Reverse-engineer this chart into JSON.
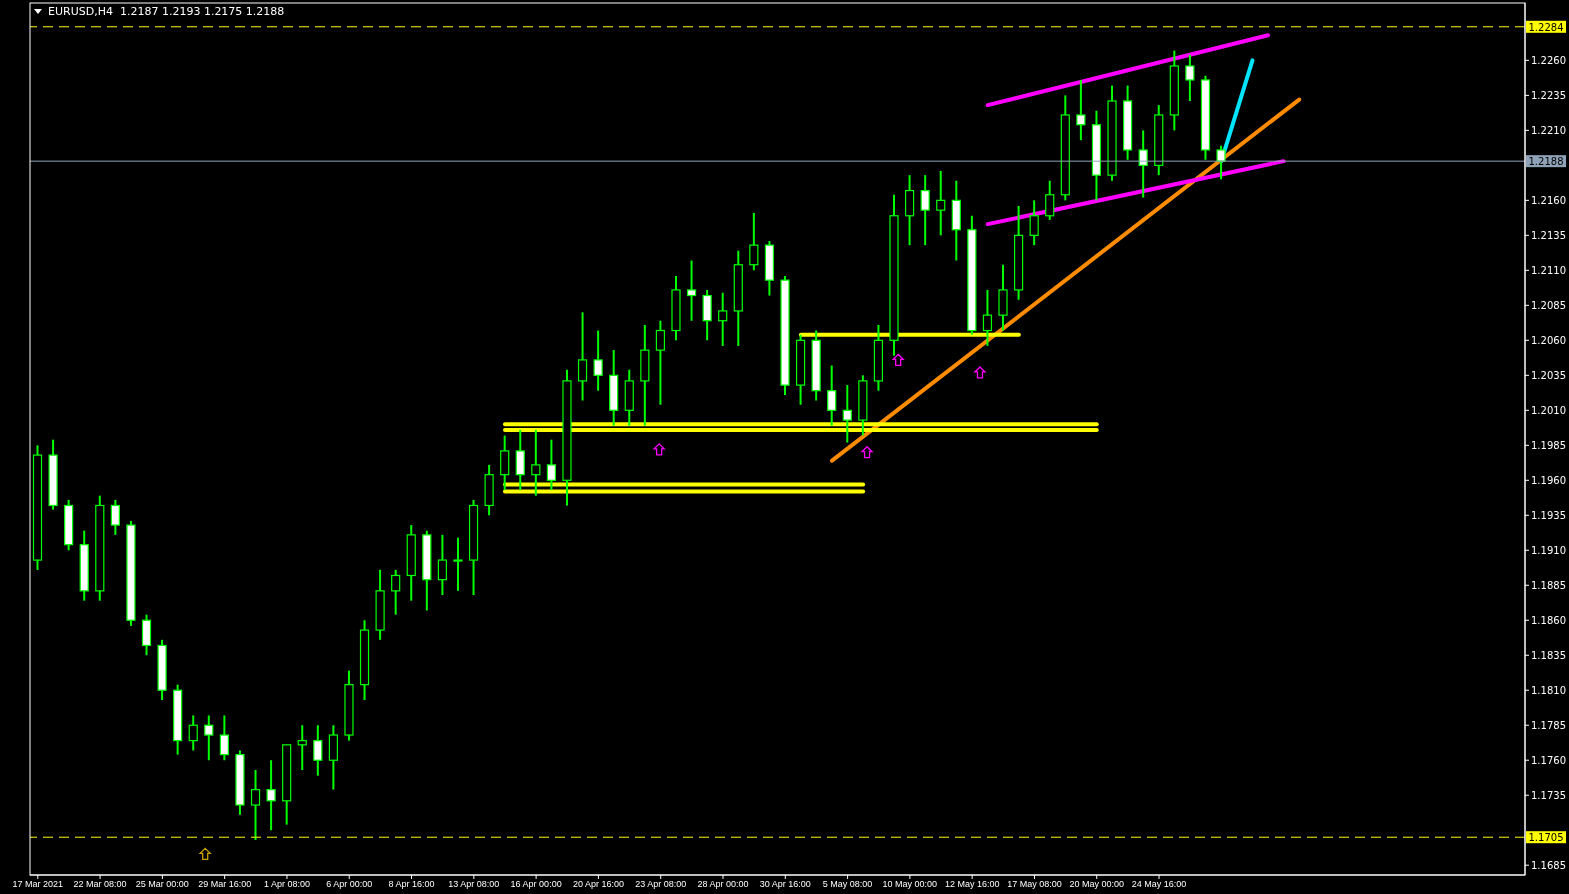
{
  "chart_data": {
    "type": "candlestick",
    "title": "EURUSD,H4  1.2187 1.2193 1.2175 1.2188",
    "color": "#00ff00",
    "categories": [
      "17 Mar 2021",
      null,
      null,
      null,
      "22 Mar 08:00",
      null,
      null,
      null,
      "25 Mar 00:00",
      null,
      null,
      null,
      "29 Mar 16:00",
      null,
      null,
      null,
      "1 Apr 08:00",
      null,
      null,
      null,
      "6 Apr 00:00",
      null,
      null,
      null,
      "8 Apr 16:00",
      null,
      null,
      null,
      "13 Apr 08:00",
      null,
      null,
      null,
      "16 Apr 00:00",
      null,
      null,
      null,
      "20 Apr 16:00",
      null,
      null,
      null,
      "23 Apr 08:00",
      null,
      null,
      null,
      "28 Apr 00:00",
      null,
      null,
      null,
      "30 Apr 16:00",
      null,
      null,
      null,
      "5 May 08:00",
      null,
      null,
      null,
      "10 May 00:00",
      null,
      null,
      null,
      "12 May 16:00",
      null,
      null,
      null,
      "17 May 08:00",
      null,
      null,
      null,
      "20 May 00:00",
      null,
      null,
      null,
      "24 May 16:00",
      null,
      null,
      null,
      null,
      null,
      null,
      null,
      null,
      null,
      null,
      null,
      null,
      null,
      null,
      null,
      null,
      null,
      null,
      null,
      null,
      null,
      null,
      null
    ],
    "ohlc": [
      [
        1.1903,
        1.1985,
        1.1896,
        1.1978
      ],
      [
        1.1978,
        1.1989,
        1.1939,
        1.1942
      ],
      [
        1.1942,
        1.1946,
        1.191,
        1.1914
      ],
      [
        1.1914,
        1.1924,
        1.1874,
        1.1881
      ],
      [
        1.1881,
        1.1949,
        1.1874,
        1.1942
      ],
      [
        1.1942,
        1.1946,
        1.1921,
        1.1928
      ],
      [
        1.1928,
        1.1931,
        1.1856,
        1.186
      ],
      [
        1.186,
        1.1864,
        1.1835,
        1.1842
      ],
      [
        1.1842,
        1.1846,
        1.1803,
        1.181
      ],
      [
        1.181,
        1.1814,
        1.1764,
        1.1774
      ],
      [
        1.1774,
        1.1792,
        1.1767,
        1.1785
      ],
      [
        1.1785,
        1.1792,
        1.176,
        1.1778
      ],
      [
        1.1778,
        1.1792,
        1.176,
        1.1764
      ],
      [
        1.1764,
        1.1767,
        1.1721,
        1.1728
      ],
      [
        1.1728,
        1.1753,
        1.1703,
        1.1739
      ],
      [
        1.1739,
        1.176,
        1.171,
        1.1731
      ],
      [
        1.1731,
        1.1771,
        1.1714,
        1.1771
      ],
      [
        1.1771,
        1.1785,
        1.1753,
        1.1774
      ],
      [
        1.1774,
        1.1785,
        1.1749,
        1.176
      ],
      [
        1.176,
        1.1785,
        1.1739,
        1.1778
      ],
      [
        1.1778,
        1.1824,
        1.1774,
        1.1814
      ],
      [
        1.1814,
        1.186,
        1.1803,
        1.1853
      ],
      [
        1.1853,
        1.1896,
        1.1846,
        1.1881
      ],
      [
        1.1881,
        1.1896,
        1.1864,
        1.1892
      ],
      [
        1.1892,
        1.1928,
        1.1874,
        1.1921
      ],
      [
        1.1921,
        1.1924,
        1.1867,
        1.1889
      ],
      [
        1.1889,
        1.1921,
        1.1878,
        1.1903
      ],
      [
        1.1903,
        1.1919,
        1.1881,
        1.1903
      ],
      [
        1.1903,
        1.1946,
        1.1878,
        1.1942
      ],
      [
        1.1942,
        1.1971,
        1.1935,
        1.1964
      ],
      [
        1.1964,
        1.1992,
        1.1953,
        1.1981
      ],
      [
        1.1981,
        1.1996,
        1.1953,
        1.1964
      ],
      [
        1.1964,
        1.1996,
        1.1949,
        1.1971
      ],
      [
        1.1971,
        1.1989,
        1.1953,
        1.196
      ],
      [
        1.196,
        1.2039,
        1.1942,
        1.2031
      ],
      [
        1.2031,
        1.208,
        1.2017,
        1.2046
      ],
      [
        1.2046,
        1.2067,
        1.2024,
        1.2035
      ],
      [
        1.2035,
        1.2053,
        1.1999,
        1.201
      ],
      [
        1.201,
        1.2039,
        1.1999,
        1.2031
      ],
      [
        1.2031,
        1.2071,
        1.1999,
        1.2053
      ],
      [
        1.2053,
        1.2074,
        1.2014,
        1.2067
      ],
      [
        1.2067,
        1.2106,
        1.206,
        1.2096
      ],
      [
        1.2096,
        1.2117,
        1.2074,
        1.2092
      ],
      [
        1.2092,
        1.2096,
        1.206,
        1.2074
      ],
      [
        1.2074,
        1.2094,
        1.2056,
        1.2081
      ],
      [
        1.2081,
        1.2124,
        1.2056,
        1.2114
      ],
      [
        1.2114,
        1.2151,
        1.211,
        1.2128
      ],
      [
        1.2128,
        1.2131,
        1.2092,
        1.2103
      ],
      [
        1.2103,
        1.2106,
        1.2021,
        1.2028
      ],
      [
        1.2028,
        1.2064,
        1.2014,
        1.206
      ],
      [
        1.206,
        1.2067,
        1.2017,
        1.2024
      ],
      [
        1.2024,
        1.2042,
        1.1999,
        1.201
      ],
      [
        1.201,
        1.2028,
        1.1987,
        1.2003
      ],
      [
        1.2003,
        1.2035,
        1.1992,
        1.2031
      ],
      [
        1.2031,
        1.2071,
        1.2024,
        1.206
      ],
      [
        1.206,
        1.2164,
        1.2049,
        1.2149
      ],
      [
        1.2149,
        1.2178,
        1.2128,
        1.2167
      ],
      [
        1.2167,
        1.2178,
        1.2128,
        1.2153
      ],
      [
        1.2153,
        1.2181,
        1.2135,
        1.216
      ],
      [
        1.216,
        1.2174,
        1.2117,
        1.2139
      ],
      [
        1.2139,
        1.2149,
        1.2064,
        1.2067
      ],
      [
        1.2067,
        1.2096,
        1.2056,
        1.2078
      ],
      [
        1.2078,
        1.2114,
        1.2067,
        1.2096
      ],
      [
        1.2096,
        1.2156,
        1.2089,
        1.2135
      ],
      [
        1.2135,
        1.216,
        1.2128,
        1.2149
      ],
      [
        1.2149,
        1.2174,
        1.2146,
        1.2164
      ],
      [
        1.2164,
        1.2235,
        1.216,
        1.2221
      ],
      [
        1.2221,
        1.2246,
        1.2203,
        1.2214
      ],
      [
        1.2214,
        1.2224,
        1.216,
        1.2178
      ],
      [
        1.2178,
        1.2242,
        1.2174,
        1.2231
      ],
      [
        1.2231,
        1.2242,
        1.2189,
        1.2196
      ],
      [
        1.2196,
        1.221,
        1.2162,
        1.2185
      ],
      [
        1.2185,
        1.2228,
        1.2178,
        1.2221
      ],
      [
        1.2221,
        1.2267,
        1.221,
        1.2256
      ],
      [
        1.2256,
        1.2264,
        1.2231,
        1.2246
      ],
      [
        1.2246,
        1.2249,
        1.2189,
        1.2196
      ],
      [
        1.2196,
        1.2199,
        1.2175,
        1.2188
      ],
      null,
      null,
      null,
      null,
      null,
      null,
      null,
      null,
      null,
      null,
      null,
      null,
      null,
      null,
      null,
      null,
      null,
      null,
      null
    ],
    "series": [
      {
        "type": "line",
        "color": "#ff8c00",
        "values": [
          null,
          null,
          null,
          null,
          null,
          null,
          null,
          null,
          null,
          null,
          null,
          null,
          null,
          null,
          null,
          null,
          null,
          null,
          null,
          null,
          null,
          null,
          null,
          null,
          null,
          null,
          null,
          null,
          null,
          null,
          null,
          null,
          null,
          null,
          null,
          null,
          null,
          null,
          null,
          null,
          null,
          null,
          null,
          null,
          null,
          null,
          null,
          null,
          null,
          null,
          null,
          1.1974,
          null,
          null,
          null,
          null,
          null,
          null,
          null,
          null,
          null,
          null,
          null,
          null,
          null,
          null,
          null,
          null,
          null,
          null,
          null,
          null,
          null,
          null,
          null,
          null,
          null,
          null,
          null,
          null,
          null,
          1.2232,
          null,
          null,
          null,
          null,
          null,
          null,
          null,
          null,
          null,
          null,
          null,
          null,
          null,
          null
        ]
      },
      {
        "type": "line",
        "color": "#ff00ff",
        "values": [
          null,
          null,
          null,
          null,
          null,
          null,
          null,
          null,
          null,
          null,
          null,
          null,
          null,
          null,
          null,
          null,
          null,
          null,
          null,
          null,
          null,
          null,
          null,
          null,
          null,
          null,
          null,
          null,
          null,
          null,
          null,
          null,
          null,
          null,
          null,
          null,
          null,
          null,
          null,
          null,
          null,
          null,
          null,
          null,
          null,
          null,
          null,
          null,
          null,
          null,
          null,
          null,
          null,
          null,
          null,
          null,
          null,
          null,
          null,
          null,
          null,
          1.2228,
          null,
          null,
          null,
          null,
          null,
          null,
          null,
          null,
          null,
          null,
          null,
          null,
          null,
          null,
          null,
          null,
          null,
          1.2278,
          null,
          null,
          null,
          null,
          null,
          null,
          null,
          null,
          null,
          null,
          null,
          null,
          null,
          null,
          null,
          null
        ]
      },
      {
        "type": "line",
        "color": "#ff00ff",
        "values": [
          null,
          null,
          null,
          null,
          null,
          null,
          null,
          null,
          null,
          null,
          null,
          null,
          null,
          null,
          null,
          null,
          null,
          null,
          null,
          null,
          null,
          null,
          null,
          null,
          null,
          null,
          null,
          null,
          null,
          null,
          null,
          null,
          null,
          null,
          null,
          null,
          null,
          null,
          null,
          null,
          null,
          null,
          null,
          null,
          null,
          null,
          null,
          null,
          null,
          null,
          null,
          null,
          null,
          null,
          null,
          null,
          null,
          null,
          null,
          null,
          null,
          1.2143,
          null,
          null,
          null,
          null,
          null,
          null,
          null,
          null,
          null,
          null,
          null,
          null,
          null,
          null,
          null,
          null,
          null,
          null,
          1.2188,
          null,
          null,
          null,
          null,
          null,
          null,
          null,
          null,
          null,
          null,
          null,
          null,
          null,
          null,
          null
        ]
      },
      {
        "type": "line",
        "color": "#00e5ff",
        "values": [
          null,
          null,
          null,
          null,
          null,
          null,
          null,
          null,
          null,
          null,
          null,
          null,
          null,
          null,
          null,
          null,
          null,
          null,
          null,
          null,
          null,
          null,
          null,
          null,
          null,
          null,
          null,
          null,
          null,
          null,
          null,
          null,
          null,
          null,
          null,
          null,
          null,
          null,
          null,
          null,
          null,
          null,
          null,
          null,
          null,
          null,
          null,
          null,
          null,
          null,
          null,
          null,
          null,
          null,
          null,
          null,
          null,
          null,
          null,
          null,
          null,
          null,
          null,
          null,
          null,
          null,
          null,
          null,
          null,
          null,
          null,
          null,
          null,
          null,
          null,
          null,
          1.2188,
          null,
          1.226,
          null,
          null,
          null,
          null,
          null,
          null,
          null,
          null,
          null,
          null,
          null,
          null,
          null,
          null,
          null,
          null,
          null
        ]
      },
      {
        "type": "line",
        "color": "#ffff00",
        "values": [
          null,
          null,
          null,
          null,
          null,
          null,
          null,
          null,
          null,
          null,
          null,
          null,
          null,
          null,
          null,
          null,
          null,
          null,
          null,
          null,
          null,
          null,
          null,
          null,
          null,
          null,
          null,
          null,
          null,
          null,
          null,
          null,
          null,
          null,
          null,
          null,
          null,
          null,
          null,
          null,
          null,
          null,
          null,
          null,
          null,
          null,
          null,
          null,
          null,
          1.2064,
          null,
          null,
          null,
          null,
          null,
          null,
          null,
          null,
          null,
          null,
          null,
          null,
          null,
          1.2064,
          null,
          null,
          null,
          null,
          null,
          null,
          null,
          null,
          null,
          null,
          null,
          null,
          null,
          null,
          null,
          null,
          null,
          null,
          null,
          null,
          null,
          null,
          null,
          null,
          null,
          null,
          null,
          null,
          null,
          null,
          null,
          null
        ]
      },
      {
        "type": "line",
        "color": "#ffff00",
        "values": [
          null,
          null,
          null,
          null,
          null,
          null,
          null,
          null,
          null,
          null,
          null,
          null,
          null,
          null,
          null,
          null,
          null,
          null,
          null,
          null,
          null,
          null,
          null,
          null,
          null,
          null,
          null,
          null,
          null,
          null,
          1.2,
          null,
          null,
          null,
          null,
          null,
          null,
          null,
          null,
          null,
          null,
          null,
          null,
          null,
          null,
          null,
          null,
          null,
          null,
          null,
          null,
          null,
          null,
          null,
          null,
          null,
          null,
          null,
          null,
          null,
          null,
          null,
          null,
          null,
          null,
          null,
          null,
          null,
          1.2,
          null,
          null,
          null,
          null,
          null,
          null,
          null,
          null,
          null,
          null,
          null,
          null,
          null,
          null,
          null,
          null,
          null,
          null,
          null,
          null,
          null,
          null,
          null,
          null,
          null,
          null,
          null
        ]
      },
      {
        "type": "line",
        "color": "#ffff00",
        "values": [
          null,
          null,
          null,
          null,
          null,
          null,
          null,
          null,
          null,
          null,
          null,
          null,
          null,
          null,
          null,
          null,
          null,
          null,
          null,
          null,
          null,
          null,
          null,
          null,
          null,
          null,
          null,
          null,
          null,
          null,
          1.1996,
          null,
          null,
          null,
          null,
          null,
          null,
          null,
          null,
          null,
          null,
          null,
          null,
          null,
          null,
          null,
          null,
          null,
          null,
          null,
          null,
          null,
          null,
          null,
          null,
          null,
          null,
          null,
          null,
          null,
          null,
          null,
          null,
          null,
          null,
          null,
          null,
          null,
          1.1996,
          null,
          null,
          null,
          null,
          null,
          null,
          null,
          null,
          null,
          null,
          null,
          null,
          null,
          null,
          null,
          null,
          null,
          null,
          null,
          null,
          null,
          null,
          null,
          null,
          null,
          null,
          null
        ]
      },
      {
        "type": "line",
        "color": "#ffff00",
        "values": [
          null,
          null,
          null,
          null,
          null,
          null,
          null,
          null,
          null,
          null,
          null,
          null,
          null,
          null,
          null,
          null,
          null,
          null,
          null,
          null,
          null,
          null,
          null,
          null,
          null,
          null,
          null,
          null,
          null,
          null,
          1.1957,
          null,
          null,
          null,
          null,
          null,
          null,
          null,
          null,
          null,
          null,
          null,
          null,
          null,
          null,
          null,
          null,
          null,
          null,
          null,
          null,
          null,
          null,
          1.1957,
          null,
          null,
          null,
          null,
          null,
          null,
          null,
          null,
          null,
          null,
          null,
          null,
          null,
          null,
          null,
          null,
          null,
          null,
          null,
          null,
          null,
          null,
          null,
          null,
          null,
          null,
          null,
          null,
          null,
          null,
          null,
          null,
          null,
          null,
          null,
          null,
          null,
          null,
          null,
          null,
          null,
          null
        ]
      },
      {
        "type": "line",
        "color": "#ffff00",
        "values": [
          null,
          null,
          null,
          null,
          null,
          null,
          null,
          null,
          null,
          null,
          null,
          null,
          null,
          null,
          null,
          null,
          null,
          null,
          null,
          null,
          null,
          null,
          null,
          null,
          null,
          null,
          null,
          null,
          null,
          null,
          1.1952,
          null,
          null,
          null,
          null,
          null,
          null,
          null,
          null,
          null,
          null,
          null,
          null,
          null,
          null,
          null,
          null,
          null,
          null,
          null,
          null,
          null,
          null,
          1.1952,
          null,
          null,
          null,
          null,
          null,
          null,
          null,
          null,
          null,
          null,
          null,
          null,
          null,
          null,
          null,
          null,
          null,
          null,
          null,
          null,
          null,
          null,
          null,
          null,
          null,
          null,
          null,
          null,
          null,
          null,
          null,
          null,
          null,
          null,
          null,
          null,
          null,
          null,
          null,
          null,
          null,
          null
        ]
      }
    ],
    "ylim": [
      1.1678,
      1.2301
    ],
    "yticks": [
      {
        "value": 1.1685,
        "label": "1.1685"
      },
      {
        "value": 1.1735,
        "label": "1.1735"
      },
      {
        "value": 1.176,
        "label": "1.1760"
      },
      {
        "value": 1.1785,
        "label": "1.1785"
      },
      {
        "value": 1.181,
        "label": "1.1810"
      },
      {
        "value": 1.1835,
        "label": "1.1835"
      },
      {
        "value": 1.186,
        "label": "1.1860"
      },
      {
        "value": 1.1885,
        "label": "1.1885"
      },
      {
        "value": 1.191,
        "label": "1.1910"
      },
      {
        "value": 1.1935,
        "label": "1.1935"
      },
      {
        "value": 1.196,
        "label": "1.1960"
      },
      {
        "value": 1.1985,
        "label": "1.1985"
      },
      {
        "value": 1.201,
        "label": "1.2010"
      },
      {
        "value": 1.2035,
        "label": "1.2035"
      },
      {
        "value": 1.206,
        "label": "1.2060"
      },
      {
        "value": 1.2085,
        "label": "1.2085"
      },
      {
        "value": 1.211,
        "label": "1.2110"
      },
      {
        "value": 1.2135,
        "label": "1.2135"
      },
      {
        "value": 1.216,
        "label": "1.2160"
      },
      {
        "value": 1.221,
        "label": "1.2210"
      },
      {
        "value": 1.2235,
        "label": "1.2235"
      },
      {
        "value": 1.226,
        "label": "1.2260"
      }
    ],
    "ref_lines": [
      {
        "axis": "y",
        "value": 1.2284,
        "label": "1.2284",
        "color": "#ffff00",
        "line_style": "dashed"
      },
      {
        "axis": "y",
        "value": 1.2188,
        "label": "1.2188",
        "color": "#8fa3b8",
        "line_style": "solid"
      },
      {
        "axis": "y",
        "value": 1.1705,
        "label": "1.1705",
        "color": "#ffff00",
        "line_style": "dashed"
      }
    ],
    "grid": false
  }
}
